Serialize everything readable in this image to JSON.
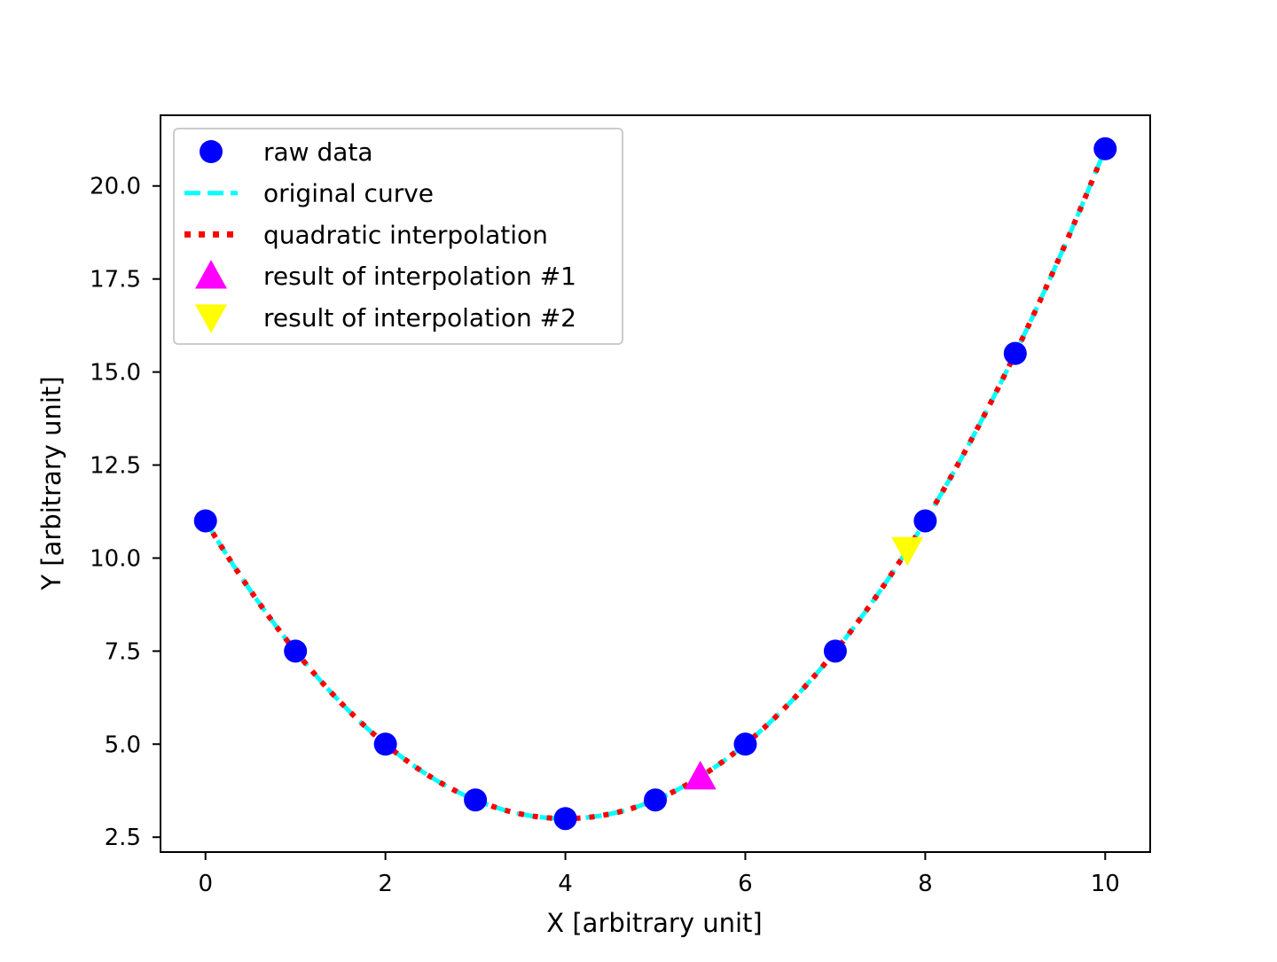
{
  "chart_data": {
    "type": "line",
    "title": "",
    "xlabel": "X [arbitrary unit]",
    "ylabel": "Y [arbitrary unit]",
    "xlim": [
      -0.5,
      10.5
    ],
    "ylim": [
      2.1,
      21.9
    ],
    "xticks": [
      0,
      2,
      4,
      6,
      8,
      10
    ],
    "xtick_labels": [
      "0",
      "2",
      "4",
      "6",
      "8",
      "10"
    ],
    "yticks": [
      2.5,
      5.0,
      7.5,
      10.0,
      12.5,
      15.0,
      17.5,
      20.0
    ],
    "ytick_labels": [
      "2.5",
      "5.0",
      "7.5",
      "10.0",
      "12.5",
      "15.0",
      "17.5",
      "20.0"
    ],
    "grid": false,
    "legend_position": "upper-left",
    "series": [
      {
        "name": "raw data",
        "style": "markers",
        "marker": "circle",
        "color": "#0000ff",
        "x": [
          0,
          1,
          2,
          3,
          4,
          5,
          6,
          7,
          8,
          9,
          10
        ],
        "y": [
          11,
          7.5,
          5,
          3.5,
          3,
          3.5,
          5,
          7.5,
          11,
          15.5,
          21
        ]
      },
      {
        "name": "original curve",
        "style": "dashed-line",
        "color": "#00ffff",
        "function": "0.5*x^2 - 4*x + 11",
        "x_range": [
          0,
          10
        ]
      },
      {
        "name": "quadratic interpolation",
        "style": "dotted-line",
        "color": "#ff0000",
        "function": "0.5*x^2 - 4*x + 11",
        "x_range": [
          0,
          10
        ]
      },
      {
        "name": "result of interpolation #1",
        "style": "markers",
        "marker": "triangle-up",
        "color": "#ff00ff",
        "x": [
          5.5
        ],
        "y": [
          4.125
        ]
      },
      {
        "name": "result of interpolation #2",
        "style": "markers",
        "marker": "triangle-down",
        "color": "#ffff00",
        "x": [
          7.8
        ],
        "y": [
          10.22
        ]
      }
    ]
  }
}
